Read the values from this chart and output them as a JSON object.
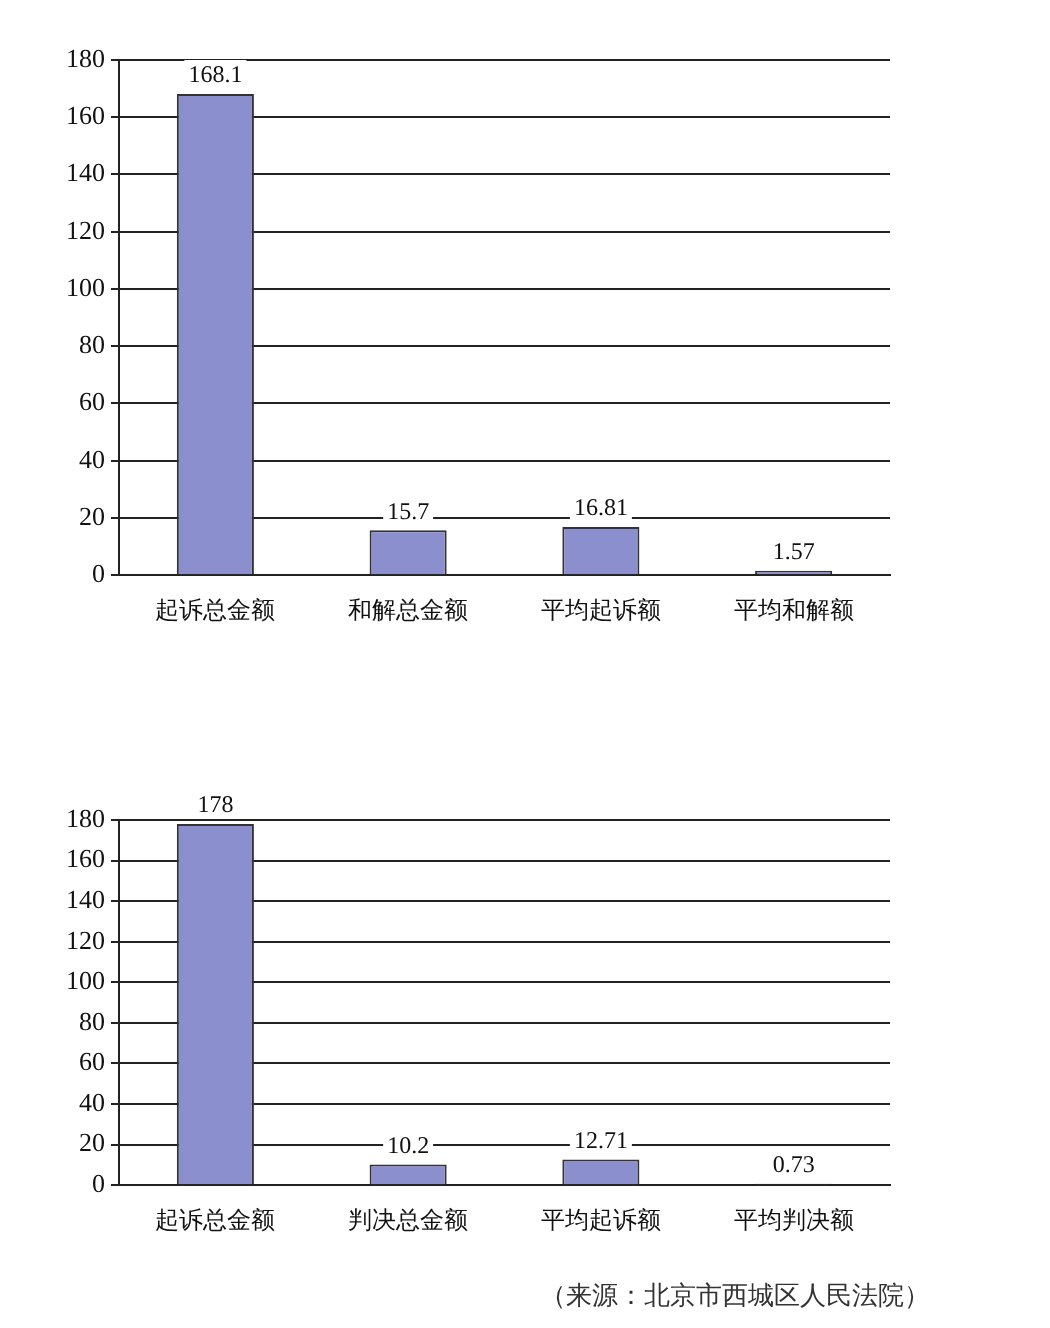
{
  "chart_data": [
    {
      "type": "bar",
      "categories": [
        "起诉总金额",
        "和解总金额",
        "平均起诉额",
        "平均和解额"
      ],
      "values": [
        168.1,
        15.7,
        16.81,
        1.57
      ],
      "color": "#8c8fce",
      "ylim": [
        0,
        180
      ],
      "yticks": [
        0,
        20,
        40,
        60,
        80,
        100,
        120,
        140,
        160,
        180
      ],
      "grid": "y",
      "legend": false,
      "data_labels": true
    },
    {
      "type": "bar",
      "categories": [
        "起诉总金额",
        "判决总金额",
        "平均起诉额",
        "平均判决额"
      ],
      "values": [
        178,
        10.2,
        12.71,
        0.73
      ],
      "color": "#8c8fce",
      "ylim": [
        0,
        180
      ],
      "yticks": [
        0,
        20,
        40,
        60,
        80,
        100,
        120,
        140,
        160,
        180
      ],
      "grid": "y",
      "legend": false,
      "data_labels": true,
      "annotations": [
        "（来源：北京市西城区人民法院）"
      ]
    }
  ]
}
